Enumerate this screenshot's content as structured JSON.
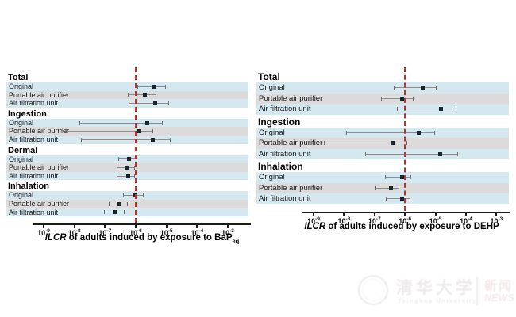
{
  "colors": {
    "band_blue": "#d5e8ef",
    "band_gray": "#dbdbdb",
    "marker": "#1c2c33",
    "whisker": "#8e8e8e",
    "reference_line": "#ce2a24",
    "axis": "#1a1a1a"
  },
  "watermark": {
    "org_cn": "清华大学",
    "org_en": "Tsinghua University",
    "badge_cn": "新闻",
    "badge_en": "NEWS"
  },
  "chart_data": [
    {
      "type": "scatter",
      "variant": "forest-plot-with-error-bars",
      "xlabel_italic": "ILCR",
      "xlabel_text": " of adults induced by exposure to ",
      "xlabel_chem": "BaP",
      "xlabel_chem_sub": "eq",
      "x_scale": "log10",
      "x_tick_exponents": [
        -9,
        -8,
        -7,
        -6,
        -5,
        -4,
        -3
      ],
      "x_range_exponents": [
        -9.35,
        -2.65
      ],
      "reference_line_value": 1e-06,
      "grid": false,
      "groups": [
        {
          "label": "Total",
          "rows": [
            {
              "label": "Original",
              "value": 3.9e-06,
              "lo": 1.1e-06,
              "hi": 9.6e-06
            },
            {
              "label": "Portable air purifier",
              "value": 2e-06,
              "lo": 5.5e-07,
              "hi": 4.7e-06
            },
            {
              "label": "Air filtration unit",
              "value": 4.4e-06,
              "lo": 5.9e-07,
              "hi": 1.2e-05
            }
          ]
        },
        {
          "label": "Ingestion",
          "rows": [
            {
              "label": "Original",
              "value": 2.4e-06,
              "lo": 1.5e-08,
              "hi": 7.6e-06
            },
            {
              "label": "Portable air purifier",
              "value": 1.3e-06,
              "lo": 5.3e-09,
              "hi": 3.7e-06
            },
            {
              "label": "Air filtration unit",
              "value": 3.5e-06,
              "lo": 1.6e-08,
              "hi": 1.4e-05
            }
          ]
        },
        {
          "label": "Dermal",
          "rows": [
            {
              "label": "Original",
              "value": 6.2e-07,
              "lo": 2.7e-07,
              "hi": 1.1e-06
            },
            {
              "label": "Portable air purifier",
              "value": 5.5e-07,
              "lo": 2.4e-07,
              "hi": 9.4e-07
            },
            {
              "label": "Air filtration unit",
              "value": 5.8e-07,
              "lo": 2.4e-07,
              "hi": 9.4e-07
            }
          ]
        },
        {
          "label": "Inhalation",
          "rows": [
            {
              "label": "Original",
              "value": 8.9e-07,
              "lo": 3.9e-07,
              "hi": 1.8e-06
            },
            {
              "label": "Portable air purifier",
              "value": 2.7e-07,
              "lo": 1.3e-07,
              "hi": 5.5e-07
            },
            {
              "label": "Air filtration unit",
              "value": 2.1e-07,
              "lo": 9.3e-08,
              "hi": 4.4e-07
            }
          ]
        }
      ]
    },
    {
      "type": "scatter",
      "variant": "forest-plot-with-error-bars",
      "xlabel_italic": "ILCR",
      "xlabel_text": " of adults induced by exposure to ",
      "xlabel_chem": "DEHP",
      "xlabel_chem_sub": "",
      "x_scale": "log10",
      "x_tick_exponents": [
        -9,
        -8,
        -7,
        -6,
        -5,
        -4,
        -3
      ],
      "x_range_exponents": [
        -9.4,
        -2.55
      ],
      "reference_line_value": 1e-06,
      "grid": false,
      "groups": [
        {
          "label": "Total",
          "rows": [
            {
              "label": "Original",
              "value": 3.7e-06,
              "lo": 4.3e-07,
              "hi": 1.1e-05
            },
            {
              "label": "Portable air purifier",
              "value": 7.8e-07,
              "lo": 1.6e-07,
              "hi": 1.9e-06
            },
            {
              "label": "Air filtration unit",
              "value": 1.5e-05,
              "lo": 5.4e-07,
              "hi": 4.9e-05
            }
          ]
        },
        {
          "label": "Ingestion",
          "rows": [
            {
              "label": "Original",
              "value": 2.9e-06,
              "lo": 1.2e-08,
              "hi": 9.7e-06
            },
            {
              "label": "Portable air purifier",
              "value": 4e-07,
              "lo": 2.2e-09,
              "hi": 1.2e-06
            },
            {
              "label": "Air filtration unit",
              "value": 1.4e-05,
              "lo": 4.9e-08,
              "hi": 5.5e-05
            }
          ]
        },
        {
          "label": "Inhalation",
          "rows": [
            {
              "label": "Original",
              "value": 7.8e-07,
              "lo": 2.2e-07,
              "hi": 1.6e-06
            },
            {
              "label": "Portable air purifier",
              "value": 3.4e-07,
              "lo": 1.1e-07,
              "hi": 6.5e-07
            },
            {
              "label": "Air filtration unit",
              "value": 7.8e-07,
              "lo": 2.3e-07,
              "hi": 1.5e-06
            }
          ]
        }
      ]
    }
  ]
}
